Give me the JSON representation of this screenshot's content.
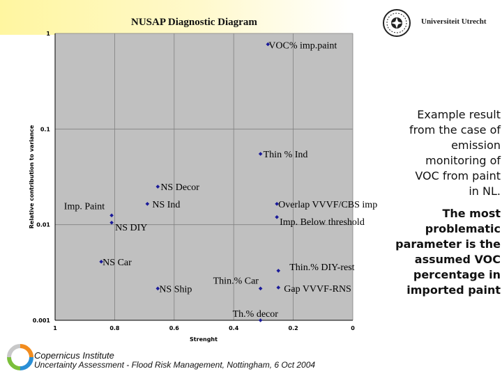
{
  "page": {
    "title": "NUSAP Diagnostic Diagram",
    "logo_text": "Universiteit Utrecht",
    "side_text_1": [
      "Example result",
      "from the case of",
      "emission",
      "monitoring of",
      "VOC from paint",
      "in NL."
    ],
    "side_text_2": [
      "The most",
      "problematic",
      "parameter is the",
      "assumed VOC",
      "percentage in",
      "imported paint"
    ],
    "footer_org": "Copernicus Institute",
    "footer_sub": "Uncertainty Assessment - Flood Risk Management, Nottingham, 6 Oct 2004"
  },
  "colors": {
    "plot_bg": "#c0c0c0",
    "marker": "#1a1a99",
    "grid": "#808080",
    "axis": "#000000"
  },
  "chart_data": {
    "type": "scatter",
    "title": "NUSAP Diagnostic Diagram",
    "xlabel": "Strenght",
    "ylabel": "Relative contribution to variance",
    "xlim": [
      1,
      0
    ],
    "ylim": [
      0.001,
      1
    ],
    "yscale": "log",
    "xticks": [
      1,
      0.8,
      0.6,
      0.4,
      0.2,
      0
    ],
    "xtick_labels": [
      "1",
      "0.8",
      "0.6",
      "0.4",
      "0.2",
      "0"
    ],
    "yticks": [
      1,
      0.1,
      0.01,
      0.001
    ],
    "ytick_labels": [
      "1",
      "0.1",
      "0.01",
      "0.001"
    ],
    "points": [
      {
        "label": "VOC% imp.paint",
        "x": 0.285,
        "y": 0.77
      },
      {
        "label": "Thin % Ind",
        "x": 0.31,
        "y": 0.055
      },
      {
        "label": "NS Decor",
        "x": 0.655,
        "y": 0.025
      },
      {
        "label": "NS Ind",
        "x": 0.69,
        "y": 0.0165
      },
      {
        "label": "Imp. Paint",
        "x": 0.81,
        "y": 0.0125
      },
      {
        "label": "NS DIY",
        "x": 0.81,
        "y": 0.0105
      },
      {
        "label": "Overlap VVVF/CBS imp",
        "x": 0.255,
        "y": 0.0165
      },
      {
        "label": "Imp. Below threshold",
        "x": 0.255,
        "y": 0.012
      },
      {
        "label": "NS Car",
        "x": 0.845,
        "y": 0.0041
      },
      {
        "label": "NS Ship",
        "x": 0.655,
        "y": 0.00215
      },
      {
        "label": "Thin.% Car",
        "x": 0.31,
        "y": 0.00215
      },
      {
        "label": "Thin.% DIY-rest",
        "x": 0.25,
        "y": 0.0033
      },
      {
        "label": "Gap VVVF-RNS",
        "x": 0.25,
        "y": 0.0022
      },
      {
        "label": "Th.% decor",
        "x": 0.31,
        "y": 0.001
      }
    ]
  }
}
